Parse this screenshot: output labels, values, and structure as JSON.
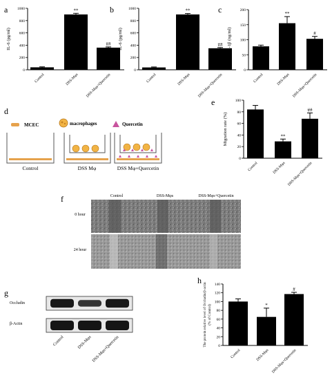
{
  "chart_data": [
    {
      "panel": "a",
      "type": "bar",
      "categories": [
        "Control",
        "DSS-Mφs",
        "DSS-Mφs+Quercetin"
      ],
      "values": [
        40,
        900,
        360
      ],
      "errors": [
        8,
        18,
        12
      ],
      "ylabel": "IL-6 (pg/ml)",
      "ylim": [
        0,
        1000
      ],
      "yticks": [
        "0",
        "200",
        "400",
        "600",
        "800",
        "1000"
      ],
      "annotations": [
        "",
        "**",
        "##"
      ]
    },
    {
      "panel": "b",
      "type": "bar",
      "categories": [
        "Control",
        "DSS-Mφs",
        "DSS-Mφs+Quercetin"
      ],
      "values": [
        38,
        900,
        350
      ],
      "errors": [
        8,
        15,
        12
      ],
      "ylabel": "IL-6 (pg/ml)",
      "ylim": [
        0,
        1000
      ],
      "yticks": [
        "0",
        "200",
        "400",
        "600",
        "800",
        "1000"
      ],
      "annotations": [
        "",
        "**",
        "##"
      ]
    },
    {
      "panel": "c",
      "type": "bar",
      "categories": [
        "Control",
        "DSS-Mφs",
        "DSS-Mφs+Quercetin"
      ],
      "values": [
        78,
        155,
        103
      ],
      "errors": [
        4,
        22,
        8
      ],
      "ylabel": "IL-1β (ng/ml)",
      "ylim": [
        0,
        200
      ],
      "yticks": [
        "0",
        "50",
        "100",
        "150",
        "200"
      ],
      "annotations": [
        "",
        "**",
        "#"
      ]
    },
    {
      "panel": "e",
      "type": "bar",
      "categories": [
        "Control",
        "DSS-Mφs",
        "DSS-Mφs+Quercetin"
      ],
      "values": [
        84,
        29,
        68
      ],
      "errors": [
        7,
        4,
        10
      ],
      "ylabel": "Migration rate (%)",
      "ylim": [
        0,
        100
      ],
      "yticks": [
        "0",
        "20",
        "40",
        "60",
        "80",
        "100"
      ],
      "annotations": [
        "",
        "**",
        "##"
      ]
    },
    {
      "panel": "h",
      "type": "bar",
      "categories": [
        "Control",
        "DSS-Mφs",
        "DSS-Mφs+Quercetin"
      ],
      "values": [
        100,
        65,
        117
      ],
      "errors": [
        6,
        20,
        4
      ],
      "ylabel": "The protein relative level of Occludin/β-actin\n(% of Control)",
      "ylim": [
        0,
        140
      ],
      "yticks": [
        "0",
        "20",
        "40",
        "60",
        "80",
        "100",
        "120",
        "140"
      ],
      "annotations": [
        "",
        "*",
        "#"
      ]
    }
  ],
  "panel_d": {
    "letter": "d",
    "legend": [
      "MCEC",
      "macrophages",
      "Quercetin"
    ],
    "labels": [
      "Control",
      "DSS Mφ",
      "DSS Mφ+Quercetin"
    ]
  },
  "panel_f": {
    "letter": "f",
    "columns": [
      "Control",
      "DSS-Mφs",
      "DSS-Mφs+Quercetin"
    ],
    "rows": [
      "0 hour",
      "24 hour"
    ]
  },
  "panel_g": {
    "letter": "g",
    "bands": [
      "Occludin",
      "β-Actin"
    ],
    "lanes": [
      "Control",
      "DSS-Mφs",
      "DSS-Mφs+Quercetin"
    ],
    "occludin_intensity": [
      0.95,
      0.55,
      0.95
    ]
  },
  "colors": {
    "bar": "#000000",
    "mcec": "#e6a24c",
    "macrophage": "#e8a02a",
    "quercetin": "#c8549e",
    "micrograph": "#8a8a8a"
  }
}
